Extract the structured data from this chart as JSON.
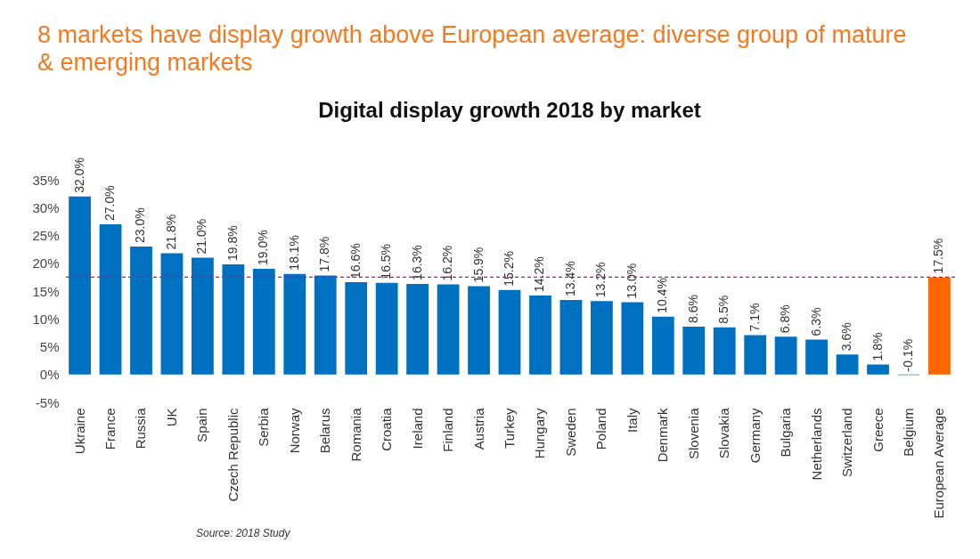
{
  "chart_data": {
    "type": "bar",
    "title": "8 markets have display growth above European average: diverse group of mature & emerging markets",
    "subtitle": "Digital display growth 2018 by market",
    "categories": [
      "Ukraine",
      "France",
      "Russia",
      "UK",
      "Spain",
      "Czech Republic",
      "Serbia",
      "Norway",
      "Belarus",
      "Romania",
      "Croatia",
      "Ireland",
      "Finland",
      "Austria",
      "Turkey",
      "Hungary",
      "Sweden",
      "Poland",
      "Italy",
      "Denmark",
      "Slovenia",
      "Slovakia",
      "Germany",
      "Bulgaria",
      "Netherlands",
      "Switzerland",
      "Greece",
      "Belgium",
      "European Average"
    ],
    "values": [
      32.0,
      27.0,
      23.0,
      21.8,
      21.0,
      19.8,
      19.0,
      18.1,
      17.8,
      16.6,
      16.5,
      16.3,
      16.2,
      15.9,
      15.2,
      14.2,
      13.4,
      13.2,
      13.0,
      10.4,
      8.6,
      8.5,
      7.1,
      6.8,
      6.3,
      3.6,
      1.8,
      -0.1,
      17.5
    ],
    "value_labels": [
      "32.0%",
      "27.0%",
      "23.0%",
      "21.8%",
      "21.0%",
      "19.8%",
      "19.0%",
      "18.1%",
      "17.8%",
      "16.6%",
      "16.5%",
      "16.3%",
      "16.2%",
      "15.9%",
      "15.2%",
      "14.2%",
      "13.4%",
      "13.2%",
      "13.0%",
      "10.4%",
      "8.6%",
      "8.5%",
      "7.1%",
      "6.8%",
      "6.3%",
      "3.6%",
      "1.8%",
      "-0.1%",
      "17.5%"
    ],
    "colors": [
      "#0070c0",
      "#0070c0",
      "#0070c0",
      "#0070c0",
      "#0070c0",
      "#0070c0",
      "#0070c0",
      "#0070c0",
      "#0070c0",
      "#0070c0",
      "#0070c0",
      "#0070c0",
      "#0070c0",
      "#0070c0",
      "#0070c0",
      "#0070c0",
      "#0070c0",
      "#0070c0",
      "#0070c0",
      "#0070c0",
      "#0070c0",
      "#0070c0",
      "#0070c0",
      "#0070c0",
      "#0070c0",
      "#0070c0",
      "#0070c0",
      "#0070c0",
      "#ff6600"
    ],
    "ylim": [
      -5,
      35
    ],
    "yticks": [
      {
        "value": -5,
        "label": "-5%"
      },
      {
        "value": 0,
        "label": "0%"
      },
      {
        "value": 5,
        "label": "5%"
      },
      {
        "value": 10,
        "label": "10%"
      },
      {
        "value": 15,
        "label": "15%"
      },
      {
        "value": 20,
        "label": "20%"
      },
      {
        "value": 25,
        "label": "25%"
      },
      {
        "value": 30,
        "label": "30%"
      },
      {
        "value": 35,
        "label": "35%"
      }
    ],
    "ref_lines": [
      {
        "axis": "y",
        "value": 17.5,
        "color": "#e6007e",
        "line_style": "dashed"
      }
    ],
    "annotations": [
      "Source: 2018 Study"
    ],
    "grid": false
  }
}
